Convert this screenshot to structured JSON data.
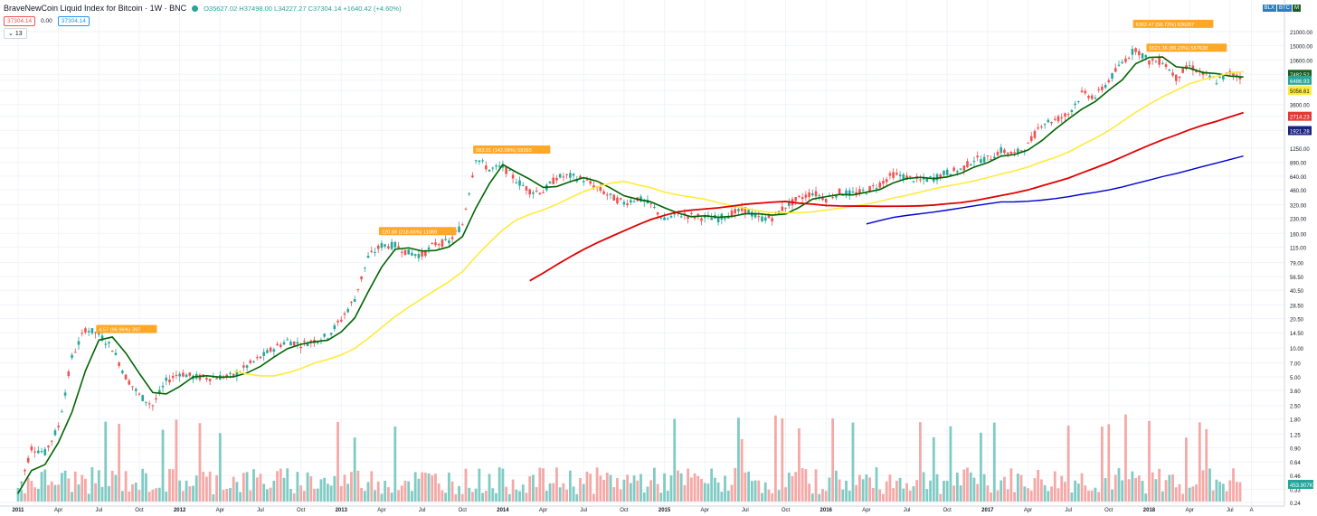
{
  "header": {
    "title": "BraveNewCoin Liquid Index for Bitcoin · 1W · BNC",
    "ohlc": "O35627.02 H37498.00 L34227.27 C37304.14 +1640.42 (+4.60%)"
  },
  "indicator_row": {
    "val1": "37304.14",
    "val2": "0.00",
    "val3": "37304.14"
  },
  "ma_row": {
    "label": "13"
  },
  "top_right": {
    "b1": "BLX",
    "b2": "BTC",
    "b3": "M"
  },
  "colors": {
    "up": "#26a69a",
    "down": "#ef5350",
    "ma13": "#006400",
    "ma50": "#ffeb3b",
    "ma100": "#e00000",
    "ma200": "#0000cc"
  },
  "chart_data": {
    "type": "line",
    "y_scale": "log",
    "y_tick_labels": [
      "21000.00",
      "15000.00",
      "10600.00",
      "7482.52",
      "6486.93",
      "5056.61",
      "3600.00",
      "2714.23",
      "1921.28",
      "1250.00",
      "890.00",
      "640.00",
      "460.00",
      "320.00",
      "230.00",
      "160.00",
      "115.00",
      "79.00",
      "56.50",
      "40.50",
      "28.50",
      "20.50",
      "14.50",
      "10.00",
      "7.00",
      "5.00",
      "3.60",
      "2.50",
      "1.80",
      "1.25",
      "0.90",
      "0.64",
      "0.46",
      "0.33",
      "0.24"
    ],
    "x_tick_labels": [
      "2011",
      "Apr",
      "Jul",
      "Oct",
      "2012",
      "Apr",
      "Jul",
      "Oct",
      "2013",
      "Apr",
      "Jul",
      "Oct",
      "2014",
      "Apr",
      "Jul",
      "Oct",
      "2015",
      "Apr",
      "Jul",
      "Oct",
      "2016",
      "Apr",
      "Jul",
      "Oct",
      "2017",
      "Apr",
      "Jul",
      "Oct",
      "2018",
      "Apr",
      "Jul",
      "A"
    ],
    "price_close": [
      [
        "2011-01",
        0.3
      ],
      [
        "2011-02",
        0.9
      ],
      [
        "2011-03",
        0.8
      ],
      [
        "2011-04",
        1.5
      ],
      [
        "2011-05",
        8
      ],
      [
        "2011-06",
        16
      ],
      [
        "2011-07",
        14
      ],
      [
        "2011-08",
        10
      ],
      [
        "2011-09",
        5
      ],
      [
        "2011-10",
        3.2
      ],
      [
        "2011-11",
        2.5
      ],
      [
        "2011-12",
        4.5
      ],
      [
        "2012-01",
        5.5
      ],
      [
        "2012-02",
        5
      ],
      [
        "2012-03",
        4.9
      ],
      [
        "2012-04",
        5
      ],
      [
        "2012-05",
        5.1
      ],
      [
        "2012-06",
        6.5
      ],
      [
        "2012-07",
        8
      ],
      [
        "2012-08",
        10
      ],
      [
        "2012-09",
        12
      ],
      [
        "2012-10",
        11
      ],
      [
        "2012-11",
        12
      ],
      [
        "2012-12",
        13.5
      ],
      [
        "2013-01",
        20
      ],
      [
        "2013-02",
        33
      ],
      [
        "2013-03",
        90
      ],
      [
        "2013-04",
        120
      ],
      [
        "2013-05",
        120
      ],
      [
        "2013-06",
        100
      ],
      [
        "2013-07",
        95
      ],
      [
        "2013-08",
        125
      ],
      [
        "2013-09",
        130
      ],
      [
        "2013-10",
        200
      ],
      [
        "2013-11",
        1000
      ],
      [
        "2013-12",
        750
      ],
      [
        "2014-01",
        800
      ],
      [
        "2014-02",
        580
      ],
      [
        "2014-03",
        450
      ],
      [
        "2014-04",
        440
      ],
      [
        "2014-05",
        620
      ],
      [
        "2014-06",
        640
      ],
      [
        "2014-07",
        590
      ],
      [
        "2014-08",
        480
      ],
      [
        "2014-09",
        390
      ],
      [
        "2014-10",
        335
      ],
      [
        "2014-11",
        375
      ],
      [
        "2014-12",
        320
      ],
      [
        "2015-01",
        220
      ],
      [
        "2015-02",
        255
      ],
      [
        "2015-03",
        245
      ],
      [
        "2015-04",
        235
      ],
      [
        "2015-05",
        230
      ],
      [
        "2015-06",
        260
      ],
      [
        "2015-07",
        285
      ],
      [
        "2015-08",
        230
      ],
      [
        "2015-09",
        235
      ],
      [
        "2015-10",
        310
      ],
      [
        "2015-11",
        370
      ],
      [
        "2015-12",
        430
      ],
      [
        "2016-01",
        370
      ],
      [
        "2016-02",
        435
      ],
      [
        "2016-03",
        415
      ],
      [
        "2016-04",
        450
      ],
      [
        "2016-05",
        530
      ],
      [
        "2016-06",
        670
      ],
      [
        "2016-07",
        620
      ],
      [
        "2016-08",
        575
      ],
      [
        "2016-09",
        610
      ],
      [
        "2016-10",
        700
      ],
      [
        "2016-11",
        745
      ],
      [
        "2016-12",
        960
      ],
      [
        "2017-01",
        970
      ],
      [
        "2017-02",
        1190
      ],
      [
        "2017-03",
        1080
      ],
      [
        "2017-04",
        1350
      ],
      [
        "2017-05",
        2300
      ],
      [
        "2017-06",
        2480
      ],
      [
        "2017-07",
        2870
      ],
      [
        "2017-08",
        4700
      ],
      [
        "2017-09",
        4340
      ],
      [
        "2017-10",
        6450
      ],
      [
        "2017-11",
        10000
      ],
      [
        "2017-12",
        14000
      ],
      [
        "2018-01",
        10200
      ],
      [
        "2018-02",
        10300
      ],
      [
        "2018-03",
        6900
      ],
      [
        "2018-04",
        9200
      ],
      [
        "2018-05",
        7500
      ],
      [
        "2018-06",
        6400
      ],
      [
        "2018-07",
        7700
      ],
      [
        "2018-08",
        7000
      ]
    ],
    "annotations": [
      "4.57 (96.96%) 397",
      "120.88 (218.65%) 11089",
      "583.01 (142.08%) 58393",
      "6362.47 (58.72%) 636267",
      "5521.36 (86.23%) 557638"
    ],
    "current_price_labels": [
      "7482.52",
      "6486.93",
      "5056.61",
      "2714.23",
      "1921.28"
    ],
    "volume_label": "453.907K"
  }
}
